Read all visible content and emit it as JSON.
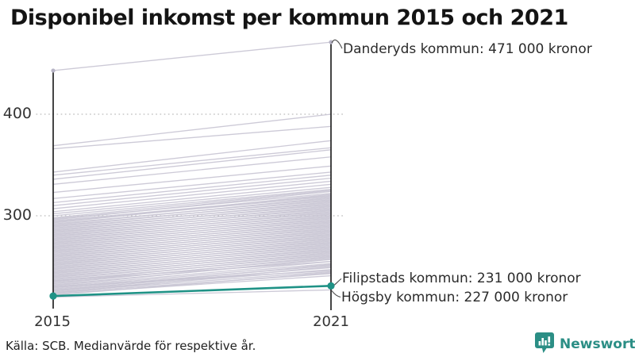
{
  "header": {
    "title": "Disponibel inkomst per kommun 2015 och 2021"
  },
  "footer": {
    "source": "Källa: SCB. Medianvärde för respektive år.",
    "brand": "Newsworthy"
  },
  "colors": {
    "highlight_teal": "#1f9286",
    "line_gray": "#c9c6d4",
    "axis_black": "#161616",
    "brand_teal": "#2b8e85"
  },
  "icons": {
    "brand_logo": "bar-chart-speech-bubble-icon"
  },
  "chart_data": {
    "type": "line",
    "subtype": "slope-chart",
    "title": "Disponibel inkomst per kommun 2015 och 2021",
    "x_categories": [
      "2015",
      "2021"
    ],
    "y_ticks": [
      {
        "label": "400",
        "value": 400
      },
      {
        "label": "300",
        "value": 300
      }
    ],
    "value_unit": "000 kronor",
    "grid": true,
    "top_series": {
      "name": "Danderyds kommun",
      "values": [
        443,
        471
      ]
    },
    "highlight_series": {
      "name": "Filipstads kommun",
      "values": [
        221,
        231
      ],
      "color": "#1f9286"
    },
    "min_series": {
      "name": "Högsby kommun",
      "values": [
        220,
        227
      ]
    },
    "annotations": [
      {
        "label": "Danderyds kommun: 471 000 kronor",
        "value": 471
      },
      {
        "label": "Filipstads kommun: 231 000 kronor",
        "value": 231
      },
      {
        "label": "Högsby kommun: 227 000 kronor",
        "value": 227
      }
    ],
    "background_series": [
      [
        369,
        400
      ],
      [
        366,
        388
      ],
      [
        343,
        374
      ],
      [
        340,
        367
      ],
      [
        336,
        365
      ],
      [
        331,
        358
      ],
      [
        323,
        349
      ],
      [
        317,
        343
      ],
      [
        313,
        340
      ],
      [
        310,
        337
      ],
      [
        307,
        334
      ],
      [
        304,
        331
      ],
      [
        302,
        328
      ],
      [
        300,
        326
      ],
      [
        298,
        325
      ],
      [
        297,
        322
      ],
      [
        296,
        324
      ],
      [
        295,
        320
      ],
      [
        294,
        319
      ],
      [
        293,
        321
      ],
      [
        292,
        317
      ],
      [
        291,
        318
      ],
      [
        290,
        315
      ],
      [
        289,
        316
      ],
      [
        288,
        313
      ],
      [
        287,
        314
      ],
      [
        286,
        311
      ],
      [
        285,
        312
      ],
      [
        284,
        309
      ],
      [
        283,
        310
      ],
      [
        282,
        307
      ],
      [
        281,
        308
      ],
      [
        280,
        305
      ],
      [
        279,
        306
      ],
      [
        278,
        303
      ],
      [
        277,
        304
      ],
      [
        276,
        301
      ],
      [
        275,
        302
      ],
      [
        274,
        299
      ],
      [
        273,
        300
      ],
      [
        272,
        297
      ],
      [
        271,
        298
      ],
      [
        270,
        295
      ],
      [
        269,
        296
      ],
      [
        268,
        293
      ],
      [
        267,
        294
      ],
      [
        266,
        291
      ],
      [
        265,
        292
      ],
      [
        264,
        289
      ],
      [
        263,
        290
      ],
      [
        262,
        287
      ],
      [
        261,
        288
      ],
      [
        260,
        285
      ],
      [
        259,
        286
      ],
      [
        258,
        283
      ],
      [
        257,
        284
      ],
      [
        256,
        281
      ],
      [
        255,
        282
      ],
      [
        254,
        279
      ],
      [
        253,
        280
      ],
      [
        252,
        277
      ],
      [
        251,
        278
      ],
      [
        250,
        275
      ],
      [
        249,
        276
      ],
      [
        248,
        273
      ],
      [
        247,
        274
      ],
      [
        246,
        271
      ],
      [
        245,
        272
      ],
      [
        244,
        269
      ],
      [
        243,
        270
      ],
      [
        242,
        267
      ],
      [
        241,
        268
      ],
      [
        240,
        265
      ],
      [
        239,
        266
      ],
      [
        238,
        263
      ],
      [
        237,
        264
      ],
      [
        236,
        261
      ],
      [
        235,
        262
      ],
      [
        234,
        259
      ],
      [
        233,
        260
      ],
      [
        232,
        257
      ],
      [
        231,
        258
      ],
      [
        230,
        255
      ],
      [
        229,
        253
      ],
      [
        228,
        251
      ],
      [
        227,
        249
      ],
      [
        226,
        247
      ],
      [
        225,
        245
      ],
      [
        224,
        243
      ],
      [
        223,
        241
      ],
      [
        222,
        244
      ],
      [
        224,
        250
      ],
      [
        226,
        252
      ],
      [
        236,
        255
      ],
      [
        230,
        246
      ]
    ]
  }
}
